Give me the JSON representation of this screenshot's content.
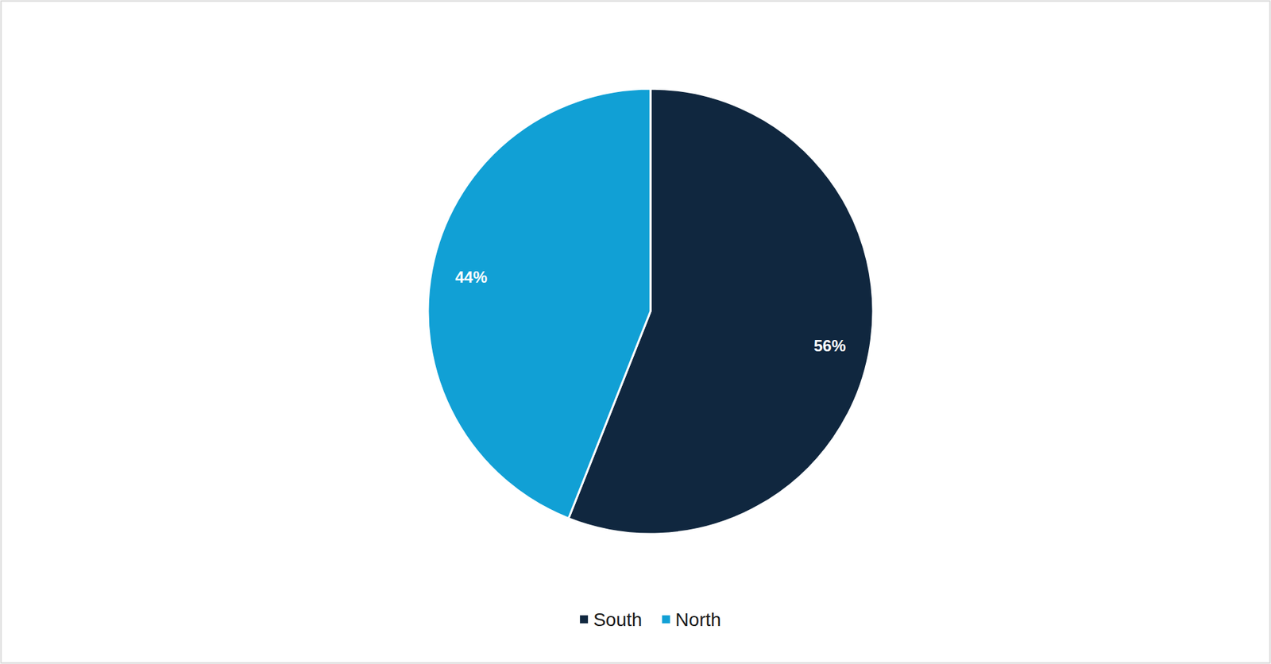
{
  "chart_data": {
    "type": "pie",
    "categories": [
      "South",
      "North"
    ],
    "values": [
      56,
      44
    ],
    "value_labels": [
      "56%",
      "44%"
    ],
    "colors": [
      "#10273f",
      "#11a0d5"
    ],
    "data_labels": true,
    "legend": "bottom"
  }
}
